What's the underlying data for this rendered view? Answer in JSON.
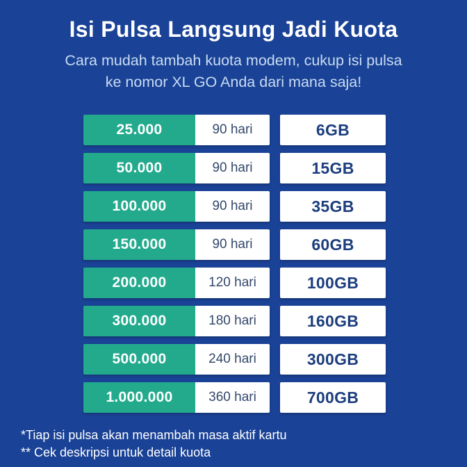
{
  "poster": {
    "title": "Isi Pulsa Langsung Jadi Kuota",
    "subtitle_line1": "Cara mudah tambah kuota modem, cukup isi pulsa",
    "subtitle_line2": "ke nomor XL GO Anda dari mana saja!",
    "footnotes": [
      "*Tiap isi pulsa akan menambah masa aktif kartu",
      "** Cek deskripsi untuk detail kuota"
    ]
  },
  "colors": {
    "background": "#1A4296",
    "accent_green": "#23AA8D",
    "box_white": "#FFFFFF",
    "quota_navy_text": "#1C3E7D",
    "days_text": "#33476B",
    "subtitle_text": "#C9DCF2",
    "title_text": "#FFFFFF"
  },
  "chart_data": {
    "type": "table",
    "columns": [
      "pulsa",
      "masa_aktif",
      "kuota"
    ],
    "rows": [
      {
        "pulsa": "25.000",
        "masa_aktif": "90 hari",
        "kuota": "6GB"
      },
      {
        "pulsa": "50.000",
        "masa_aktif": "90 hari",
        "kuota": "15GB"
      },
      {
        "pulsa": "100.000",
        "masa_aktif": "90 hari",
        "kuota": "35GB"
      },
      {
        "pulsa": "150.000",
        "masa_aktif": "90 hari",
        "kuota": "60GB"
      },
      {
        "pulsa": "200.000",
        "masa_aktif": "120 hari",
        "kuota": "100GB"
      },
      {
        "pulsa": "300.000",
        "masa_aktif": "180 hari",
        "kuota": "160GB"
      },
      {
        "pulsa": "500.000",
        "masa_aktif": "240 hari",
        "kuota": "300GB"
      },
      {
        "pulsa": "1.000.000",
        "masa_aktif": "360 hari",
        "kuota": "700GB"
      }
    ]
  }
}
